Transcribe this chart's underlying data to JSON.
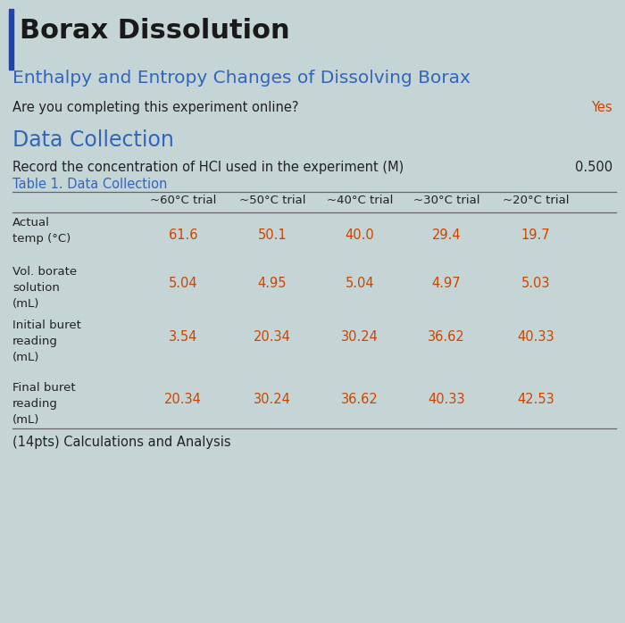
{
  "title": "Borax Dissolution",
  "subtitle": "Enthalpy and Entropy Changes of Dissolving Borax",
  "question": "Are you completing this experiment online?",
  "answer": "Yes",
  "hcl_label": "Record the concentration of HCl used in the experiment (M)",
  "hcl_value": "0.500",
  "table_title": "Table 1. Data Collection",
  "col_headers": [
    "~60°C trial",
    "~50°C trial",
    "~40°C trial",
    "~30°C trial",
    "~20°C trial"
  ],
  "row_labels": [
    "Actual\ntemp (°C)",
    "Vol. borate\nsolution\n(mL)",
    "Initial buret\nreading\n(mL)",
    "Final buret\nreading\n(mL)"
  ],
  "data_values": [
    [
      "61.6",
      "50.1",
      "40.0",
      "29.4",
      "19.7"
    ],
    [
      "5.04",
      "4.95",
      "5.04",
      "4.97",
      "5.03"
    ],
    [
      "3.54",
      "20.34",
      "30.24",
      "36.62",
      "40.33"
    ],
    [
      "20.34",
      "30.24",
      "36.62",
      "40.33",
      "42.53"
    ]
  ],
  "bg_color": "#c5d5d5",
  "title_color": "#1a1a1a",
  "subtitle_color": "#3366bb",
  "section_color": "#3366bb",
  "col_header_color": "#222222",
  "row_label_color": "#222222",
  "question_color": "#222222",
  "answer_color": "#cc4400",
  "hcl_label_color": "#222222",
  "hcl_value_color": "#222222",
  "table_title_color": "#3366bb",
  "footer_color": "#222222",
  "left_bar_color": "#2244aa",
  "data_color": "#cc4400",
  "footer_text": "(14pts) Calculations and Analysis"
}
